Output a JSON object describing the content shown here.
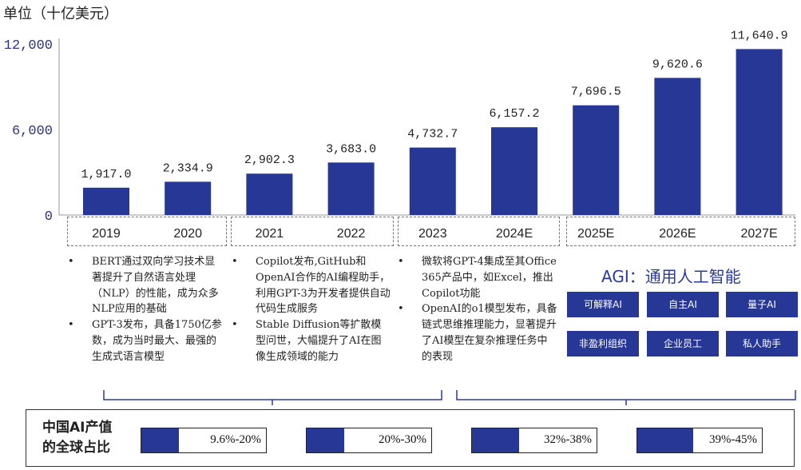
{
  "unit": "单位（十亿美元）",
  "chart_data": {
    "type": "bar",
    "categories": [
      "2019",
      "2020",
      "2021",
      "2022",
      "2023",
      "2024E",
      "2025E",
      "2026E",
      "2027E"
    ],
    "values": [
      1917.0,
      2334.9,
      2902.3,
      3683.0,
      4732.7,
      6157.2,
      7696.5,
      9620.6,
      11640.9
    ],
    "value_labels": [
      "1,917.0",
      "2,334.9",
      "2,902.3",
      "3,683.0",
      "4,732.7",
      "6,157.2",
      "7,696.5",
      "9,620.6",
      "11,640.9"
    ],
    "yticks": [
      "12,000",
      "6,000",
      "0"
    ],
    "ytick_values": [
      12000,
      6000,
      0
    ],
    "ylim": [
      0,
      12000
    ],
    "bar_color": "#263795",
    "grid": false
  },
  "events": [
    {
      "items": [
        "BERT通过双向学习技术显著提升了自然语言处理（NLP）的性能，成为众多NLP应用的基础",
        "GPT-3发布，具备1750亿参数，成为当时最大、最强的生成式语言模型"
      ]
    },
    {
      "items": [
        "Copilot发布,GitHub和OpenAI合作的AI编程助手，利用GPT-3为开发者提供自动代码生成服务",
        "Stable Diffusion等扩散模型问世，大幅提升了AI在图像生成领域的能力"
      ]
    },
    {
      "items": [
        "微软将GPT-4集成至其Office 365产品中，如Excel，推出Copilot功能",
        "OpenAI的o1模型发布，具备链式思维推理能力，显著提升了AI模型在复杂推理任务中的表现"
      ]
    }
  ],
  "agi": {
    "title": "AGI：通用人工智能",
    "tags": [
      "可解释AI",
      "自主AI",
      "量子AI",
      "非盈利组织",
      "企业员工",
      "私人助手"
    ]
  },
  "share": {
    "label_line1": "中国AI产值",
    "label_line2": "的全球占比",
    "ranges": [
      {
        "text": "9.6%-20%",
        "fill": 0.3
      },
      {
        "text": "20%-30%",
        "fill": 0.3
      },
      {
        "text": "32%-38%",
        "fill": 0.38
      },
      {
        "text": "39%-45%",
        "fill": 0.45
      }
    ],
    "fill_color": "#263795"
  }
}
